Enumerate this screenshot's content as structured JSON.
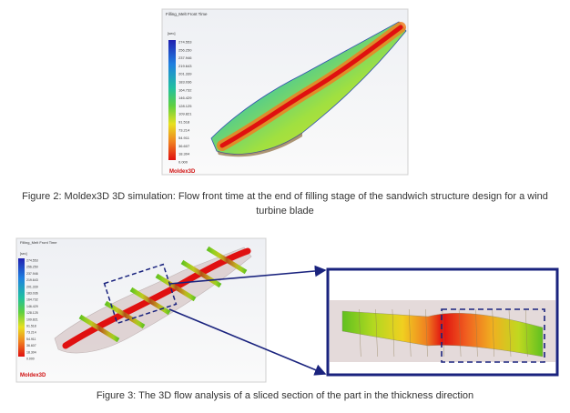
{
  "figure_2": {
    "title": "Filling_Melt Front Time",
    "unit": "[sec]",
    "legend_values": [
      "274.553",
      "256.250",
      "237.946",
      "219.643",
      "201.339",
      "183.036",
      "164.732",
      "146.429",
      "128.125",
      "109.821",
      "91.518",
      "73.214",
      "54.911",
      "36.607",
      "18.304",
      "0.000"
    ],
    "brand": "Moldex3D",
    "caption": "Figure 2: Moldex3D 3D simulation: Flow front time at the end of filling stage of the sandwich structure design for a wind turbine blade"
  },
  "figure_3": {
    "title": "Filling_Melt Front Time",
    "unit": "[sec]",
    "legend_values": [
      "274.553",
      "256.250",
      "237.946",
      "219.643",
      "201.339",
      "183.036",
      "164.732",
      "146.429",
      "128.125",
      "109.821",
      "91.518",
      "73.214",
      "54.911",
      "36.607",
      "18.304",
      "0.000"
    ],
    "brand": "Moldex3D",
    "caption": "Figure 3: The 3D flow analysis of a sliced section of the part in the thickness direction"
  }
}
